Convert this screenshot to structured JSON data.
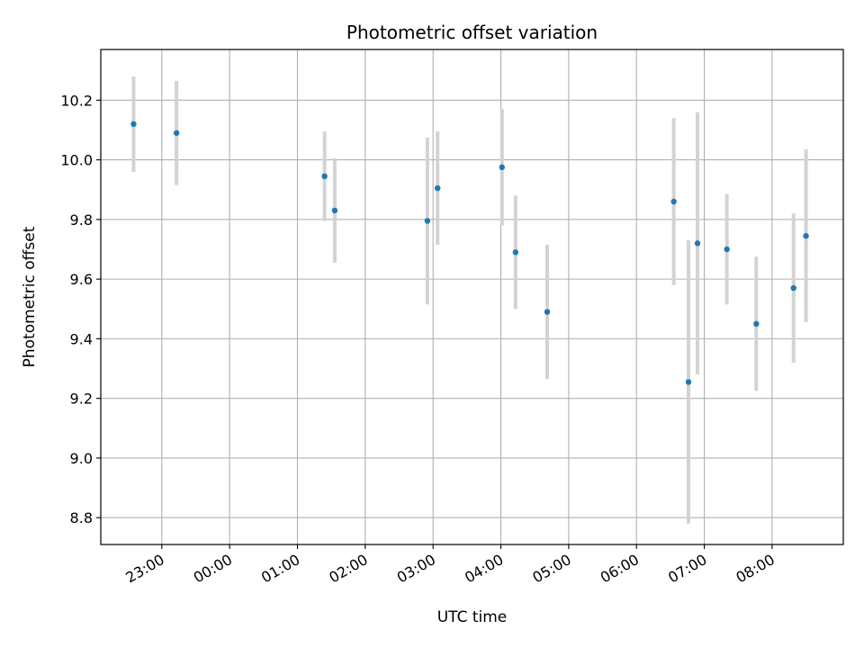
{
  "chart_data": {
    "type": "scatter",
    "title": "Photometric offset variation",
    "xlabel": "UTC time",
    "ylabel": "Photometric offset",
    "x_tick_labels": [
      "23:00",
      "00:00",
      "01:00",
      "02:00",
      "03:00",
      "04:00",
      "05:00",
      "06:00",
      "07:00",
      "08:00"
    ],
    "y_tick_labels": [
      "8.8",
      "9.0",
      "9.2",
      "9.4",
      "9.6",
      "9.8",
      "10.0",
      "10.2"
    ],
    "ylim": [
      8.71,
      10.37
    ],
    "xlim": [
      "22:06",
      "09:03"
    ],
    "grid": true,
    "marker_color": "#1f77b4",
    "errorbar_color": "#d3d3d3",
    "points": [
      {
        "x": "22:35",
        "y": 10.12,
        "err": 0.16
      },
      {
        "x": "23:13",
        "y": 10.09,
        "err": 0.175
      },
      {
        "x": "01:24",
        "y": 9.945,
        "err": 0.15
      },
      {
        "x": "01:33",
        "y": 9.83,
        "err": 0.175
      },
      {
        "x": "02:55",
        "y": 9.795,
        "err": 0.28
      },
      {
        "x": "03:04",
        "y": 9.905,
        "err": 0.19
      },
      {
        "x": "04:01",
        "y": 9.975,
        "err": 0.195
      },
      {
        "x": "04:13",
        "y": 9.69,
        "err": 0.19
      },
      {
        "x": "04:41",
        "y": 9.49,
        "err": 0.225
      },
      {
        "x": "06:33",
        "y": 9.86,
        "err": 0.28
      },
      {
        "x": "06:46",
        "y": 9.255,
        "err": 0.475
      },
      {
        "x": "06:54",
        "y": 9.72,
        "err": 0.44
      },
      {
        "x": "07:20",
        "y": 9.7,
        "err": 0.185
      },
      {
        "x": "07:46",
        "y": 9.45,
        "err": 0.225
      },
      {
        "x": "08:19",
        "y": 9.57,
        "err": 0.25
      },
      {
        "x": "08:30",
        "y": 9.745,
        "err": 0.29
      }
    ]
  }
}
